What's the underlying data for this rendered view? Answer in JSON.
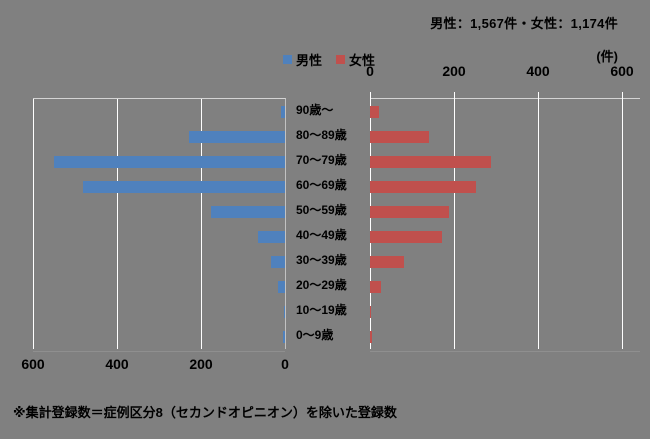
{
  "header": {
    "totals_label": "男性：1,567件・女性：1,174件",
    "unit_label": "(件)"
  },
  "footnote": "※集計登録数＝症例区分8（セカンドオピニオン）を除いた登録数",
  "colors": {
    "male": "#4F81BD",
    "female": "#C0504D",
    "background": "#808080",
    "gridline": "#FFFFFF",
    "text": "#000000"
  },
  "chart_data": {
    "type": "bar",
    "orientation": "horizontal-pyramid",
    "title": "男性：1,567件・女性：1,174件",
    "unit": "件",
    "legend_position": "top",
    "gridlines": true,
    "categories": [
      "90歳～",
      "80～89歳",
      "70～79歳",
      "60～69歳",
      "50～59歳",
      "40～49歳",
      "30～39歳",
      "20～29歳",
      "10～19歳",
      "0～9歳"
    ],
    "series": [
      {
        "name": "男性",
        "side": "left",
        "color": "#4F81BD",
        "total": 1567,
        "values": [
          10,
          228,
          549,
          482,
          176,
          65,
          33,
          16,
          3,
          5
        ]
      },
      {
        "name": "女性",
        "side": "right",
        "color": "#C0504D",
        "total": 1174,
        "values": [
          21,
          140,
          288,
          253,
          187,
          171,
          82,
          25,
          3,
          4
        ]
      }
    ],
    "value_axis": {
      "min": 0,
      "max": 600,
      "tick_interval": 200,
      "left_ticks": [
        "600",
        "400",
        "200",
        "0"
      ],
      "right_ticks": [
        "0",
        "200",
        "400",
        "600"
      ]
    }
  }
}
